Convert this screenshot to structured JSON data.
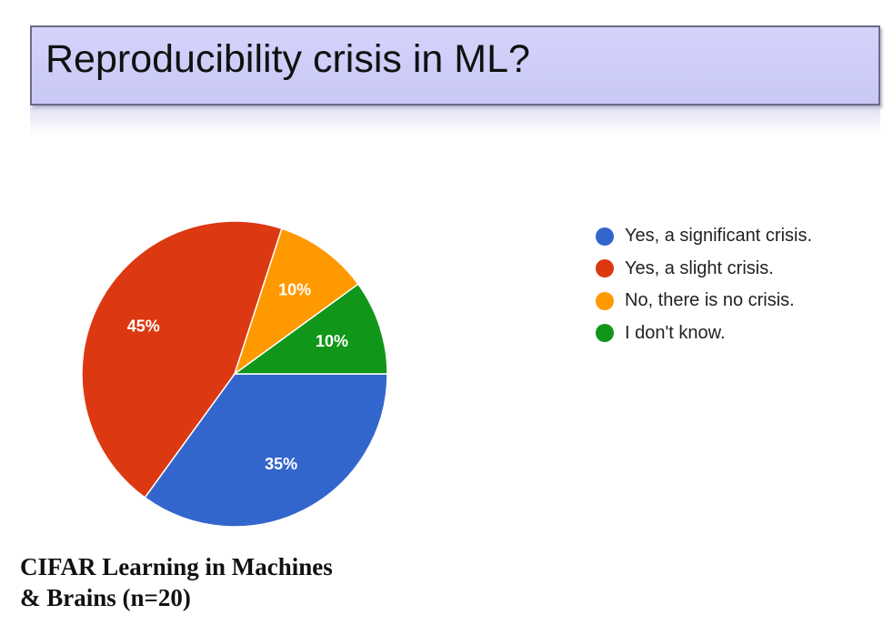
{
  "slide": {
    "title": "Reproducibility crisis in ML?",
    "source_line_1": "CIFAR Learning in Machines",
    "source_line_2": "& Brains (n=20)"
  },
  "chart_data": {
    "type": "pie",
    "title": "",
    "slices": [
      {
        "label": "Yes, a significant crisis.",
        "value": 35,
        "display": "35%",
        "color": "#3366cc"
      },
      {
        "label": "Yes, a slight crisis.",
        "value": 45,
        "display": "45%",
        "color": "#dc3912"
      },
      {
        "label": "No, there is no crisis.",
        "value": 10,
        "display": "10%",
        "color": "#ff9900"
      },
      {
        "label": "I don't know.",
        "value": 10,
        "display": "10%",
        "color": "#109618"
      }
    ],
    "legend_position": "right"
  }
}
